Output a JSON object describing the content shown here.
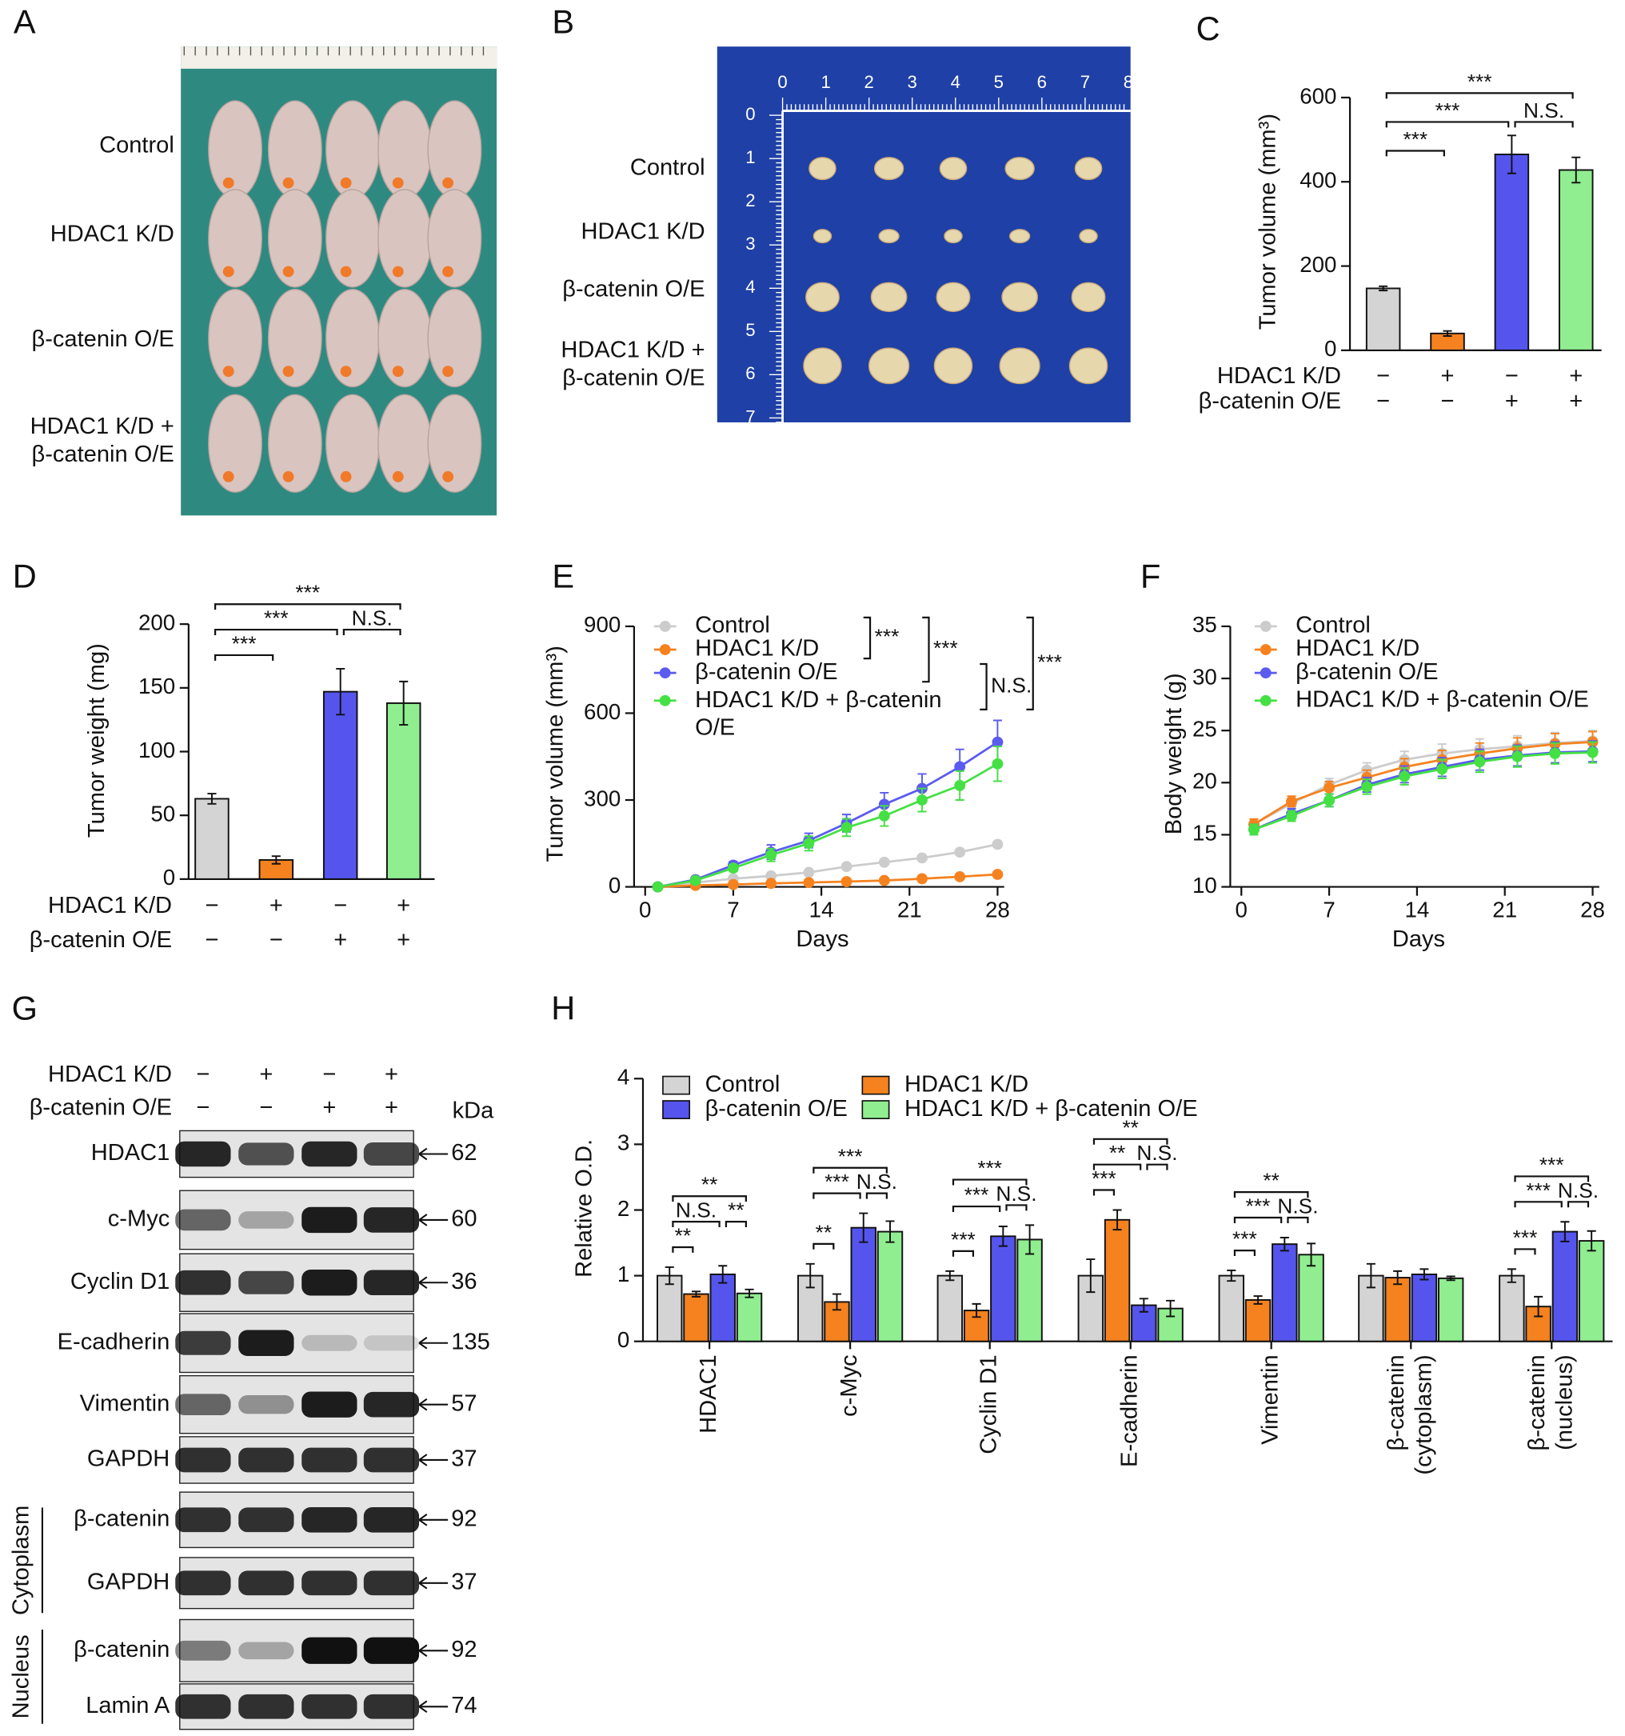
{
  "panel_labels": [
    "A",
    "B",
    "C",
    "D",
    "E",
    "F",
    "G",
    "H"
  ],
  "panel_a": {
    "group_labels": [
      "Control",
      "HDAC1 K/D",
      "β-catenin O/E",
      "HDAC1 K/D +\nβ-catenin O/E"
    ]
  },
  "panel_b": {
    "ruler_x": [
      0,
      1,
      2,
      3,
      4,
      5,
      6,
      7,
      8
    ],
    "ruler_y": [
      0,
      1,
      2,
      3,
      4,
      5,
      6,
      7
    ],
    "group_labels": [
      "Control",
      "HDAC1 K/D",
      "β-catenin O/E",
      "HDAC1 K/D +\nβ-catenin O/E"
    ]
  },
  "panel_g": {
    "conditions": [
      {
        "name": "HDAC1 K/D",
        "signs": [
          "−",
          "+",
          "−",
          "+"
        ]
      },
      {
        "name": "β-catenin O/E",
        "signs": [
          "−",
          "−",
          "+",
          "+"
        ]
      }
    ],
    "unit": "kDa",
    "blots": [
      {
        "label": "HDAC1",
        "kda": 62
      },
      {
        "label": "c-Myc",
        "kda": 60
      },
      {
        "label": "Cyclin D1",
        "kda": 36
      },
      {
        "label": "E-cadherin",
        "kda": 135
      },
      {
        "label": "Vimentin",
        "kda": 57
      },
      {
        "label": "GAPDH",
        "kda": 37
      },
      {
        "label": "β-catenin",
        "kda": 92
      },
      {
        "label": "GAPDH",
        "kda": 37
      },
      {
        "label": "β-catenin",
        "kda": 92
      },
      {
        "label": "Lamin A",
        "kda": 74
      }
    ],
    "sections": [
      "Cytoplasm",
      "Nucleus"
    ]
  },
  "chart_data": [
    {
      "type": "bar",
      "ylabel": "Tumor volume (mm³)",
      "values": [
        147,
        40,
        465,
        428
      ],
      "errors": [
        5,
        6,
        45,
        30
      ],
      "colors": [
        "#d4d4d4",
        "#f5821f",
        "#5555ee",
        "#90ee90"
      ],
      "ylim": [
        0,
        600
      ],
      "yticks": [
        0,
        200,
        400,
        600
      ],
      "conditions": [
        {
          "name": "HDAC1 K/D",
          "signs": [
            "−",
            "+",
            "−",
            "+"
          ]
        },
        {
          "name": "β-catenin O/E",
          "signs": [
            "−",
            "−",
            "+",
            "+"
          ]
        }
      ],
      "annotations": [
        {
          "pair": [
            0,
            1
          ],
          "text": "***"
        },
        {
          "pair": [
            0,
            2
          ],
          "text": "***"
        },
        {
          "pair": [
            2,
            3
          ],
          "text": "N.S."
        },
        {
          "pair": [
            0,
            3
          ],
          "text": "***"
        }
      ]
    },
    {
      "type": "bar",
      "ylabel": "Tumor weight (mg)",
      "values": [
        63,
        15,
        147,
        138
      ],
      "errors": [
        4,
        3,
        18,
        17
      ],
      "colors": [
        "#d4d4d4",
        "#f5821f",
        "#5555ee",
        "#90ee90"
      ],
      "ylim": [
        0,
        200
      ],
      "yticks": [
        0,
        50,
        100,
        150,
        200
      ],
      "conditions": [
        {
          "name": "HDAC1 K/D",
          "signs": [
            "−",
            "+",
            "−",
            "+"
          ]
        },
        {
          "name": "β-catenin O/E",
          "signs": [
            "−",
            "−",
            "+",
            "+"
          ]
        }
      ],
      "annotations": [
        {
          "pair": [
            0,
            1
          ],
          "text": "***"
        },
        {
          "pair": [
            0,
            2
          ],
          "text": "***"
        },
        {
          "pair": [
            2,
            3
          ],
          "text": "N.S."
        },
        {
          "pair": [
            0,
            3
          ],
          "text": "***"
        }
      ]
    },
    {
      "type": "line",
      "xlabel": "Days",
      "ylabel": "Tumor volume (mm³)",
      "x": [
        1,
        4,
        7,
        10,
        13,
        16,
        19,
        22,
        25,
        28
      ],
      "xlim": [
        0,
        28
      ],
      "xticks": [
        0,
        7,
        14,
        21,
        28
      ],
      "ylim": [
        0,
        900
      ],
      "yticks": [
        0,
        300,
        600,
        900
      ],
      "series": [
        {
          "name": "Control",
          "color": "#cccccc",
          "values": [
            0,
            15,
            28,
            38,
            50,
            70,
            85,
            100,
            120,
            147
          ],
          "errors": [
            2,
            3,
            4,
            5,
            5,
            6,
            6,
            7,
            8,
            10
          ]
        },
        {
          "name": "HDAC1 K/D",
          "color": "#f5821f",
          "values": [
            0,
            5,
            8,
            12,
            15,
            18,
            22,
            28,
            35,
            43
          ],
          "errors": [
            1,
            2,
            2,
            2,
            3,
            3,
            3,
            4,
            4,
            5
          ]
        },
        {
          "name": "β-catenin O/E",
          "color": "#5b5bf0",
          "values": [
            0,
            25,
            75,
            120,
            160,
            220,
            285,
            340,
            415,
            500
          ],
          "errors": [
            3,
            8,
            12,
            25,
            25,
            30,
            40,
            50,
            60,
            75
          ]
        },
        {
          "name": "HDAC1 K/D + β-catenin\nO/E",
          "color": "#44e044",
          "values": [
            0,
            22,
            65,
            110,
            150,
            205,
            245,
            300,
            350,
            425
          ],
          "errors": [
            3,
            7,
            12,
            22,
            25,
            30,
            35,
            40,
            50,
            60
          ]
        }
      ],
      "comparisons": [
        {
          "pair": [
            0,
            1
          ],
          "text": "***"
        },
        {
          "pair": [
            0,
            2
          ],
          "text": "***"
        },
        {
          "pair": [
            2,
            3
          ],
          "text": "N.S."
        },
        {
          "pair": [
            0,
            3
          ],
          "text": "***"
        }
      ]
    },
    {
      "type": "line",
      "xlabel": "Days",
      "ylabel": "Body weight (g)",
      "x": [
        1,
        4,
        7,
        10,
        13,
        16,
        19,
        22,
        25,
        28
      ],
      "xlim": [
        0,
        28
      ],
      "xticks": [
        0,
        7,
        14,
        21,
        28
      ],
      "ylim": [
        10,
        35
      ],
      "yticks": [
        10,
        15,
        20,
        25,
        30,
        35
      ],
      "series": [
        {
          "name": "Control",
          "color": "#cccccc",
          "values": [
            16,
            18,
            19.8,
            21.2,
            22.2,
            22.8,
            23.2,
            23.5,
            23.8,
            24
          ],
          "errors": [
            0.5,
            0.5,
            0.6,
            0.7,
            0.8,
            0.9,
            1,
            1,
            1,
            1
          ]
        },
        {
          "name": "HDAC1 K/D",
          "color": "#f5821f",
          "values": [
            16,
            18.2,
            19.5,
            20.5,
            21.5,
            22.2,
            22.8,
            23.3,
            23.7,
            23.9
          ],
          "errors": [
            0.5,
            0.5,
            0.6,
            0.7,
            0.8,
            0.9,
            1,
            1,
            1,
            1
          ]
        },
        {
          "name": "β-catenin O/E",
          "color": "#5b5bf0",
          "values": [
            15.5,
            17,
            18.3,
            19.8,
            20.8,
            21.5,
            22.2,
            22.6,
            22.9,
            23
          ],
          "errors": [
            0.5,
            0.5,
            0.6,
            0.7,
            0.8,
            0.9,
            1,
            1,
            1,
            1
          ]
        },
        {
          "name": "HDAC1 K/D + β-catenin O/E",
          "color": "#44e044",
          "values": [
            15.5,
            16.8,
            18.3,
            19.6,
            20.6,
            21.3,
            22,
            22.5,
            22.8,
            22.9
          ],
          "errors": [
            0.5,
            0.5,
            0.6,
            0.7,
            0.8,
            0.9,
            1,
            1,
            1,
            1
          ]
        }
      ],
      "comparisons": []
    },
    {
      "type": "bar",
      "ylabel": "Relative O.D.",
      "categories": [
        "HDAC1",
        "c-Myc",
        "Cyclin D1",
        "E-cadherin",
        "Vimentin",
        "β-catenin\n(cytoplasm)",
        "β-catenin\n(nucleus)"
      ],
      "ylim": [
        0,
        4
      ],
      "yticks": [
        0,
        1,
        2,
        3,
        4
      ],
      "series": [
        {
          "name": "Control",
          "color": "#d4d4d4",
          "values": [
            1,
            1,
            1,
            1,
            1,
            1,
            1
          ],
          "errors": [
            0.13,
            0.18,
            0.07,
            0.25,
            0.08,
            0.18,
            0.1
          ]
        },
        {
          "name": "HDAC1 K/D",
          "color": "#f5821f",
          "values": [
            0.72,
            0.6,
            0.47,
            1.85,
            0.63,
            0.97,
            0.53
          ],
          "errors": [
            0.04,
            0.12,
            0.1,
            0.15,
            0.06,
            0.1,
            0.15
          ]
        },
        {
          "name": "β-catenin O/E",
          "color": "#5555ee",
          "values": [
            1.02,
            1.73,
            1.6,
            0.55,
            1.48,
            1.02,
            1.67
          ],
          "errors": [
            0.13,
            0.22,
            0.15,
            0.1,
            0.1,
            0.08,
            0.15
          ]
        },
        {
          "name": "HDAC1 K/D + β-catenin O/E",
          "color": "#90ee90",
          "values": [
            0.73,
            1.67,
            1.55,
            0.5,
            1.32,
            0.96,
            1.53
          ],
          "errors": [
            0.06,
            0.16,
            0.22,
            0.12,
            0.17,
            0.03,
            0.15
          ]
        }
      ],
      "annotations": [
        [
          {
            "pair": [
              0,
              1
            ],
            "text": "**"
          },
          {
            "pair": [
              0,
              2
            ],
            "text": "N.S."
          },
          {
            "pair": [
              2,
              3
            ],
            "text": "**"
          },
          {
            "pair": [
              0,
              3
            ],
            "text": "**"
          }
        ],
        [
          {
            "pair": [
              0,
              1
            ],
            "text": "**"
          },
          {
            "pair": [
              0,
              2
            ],
            "text": "***"
          },
          {
            "pair": [
              2,
              3
            ],
            "text": "N.S."
          },
          {
            "pair": [
              0,
              3
            ],
            "text": "***"
          }
        ],
        [
          {
            "pair": [
              0,
              1
            ],
            "text": "***"
          },
          {
            "pair": [
              0,
              2
            ],
            "text": "***"
          },
          {
            "pair": [
              2,
              3
            ],
            "text": "N.S."
          },
          {
            "pair": [
              0,
              3
            ],
            "text": "***"
          }
        ],
        [
          {
            "pair": [
              0,
              1
            ],
            "text": "***"
          },
          {
            "pair": [
              0,
              2
            ],
            "text": "**"
          },
          {
            "pair": [
              2,
              3
            ],
            "text": "N.S."
          },
          {
            "pair": [
              0,
              3
            ],
            "text": "**"
          }
        ],
        [
          {
            "pair": [
              0,
              1
            ],
            "text": "***"
          },
          {
            "pair": [
              0,
              2
            ],
            "text": "***"
          },
          {
            "pair": [
              2,
              3
            ],
            "text": "N.S."
          },
          {
            "pair": [
              0,
              3
            ],
            "text": "**"
          }
        ],
        [],
        [
          {
            "pair": [
              0,
              1
            ],
            "text": "***"
          },
          {
            "pair": [
              0,
              2
            ],
            "text": "***"
          },
          {
            "pair": [
              2,
              3
            ],
            "text": "N.S."
          },
          {
            "pair": [
              0,
              3
            ],
            "text": "***"
          }
        ]
      ]
    }
  ]
}
